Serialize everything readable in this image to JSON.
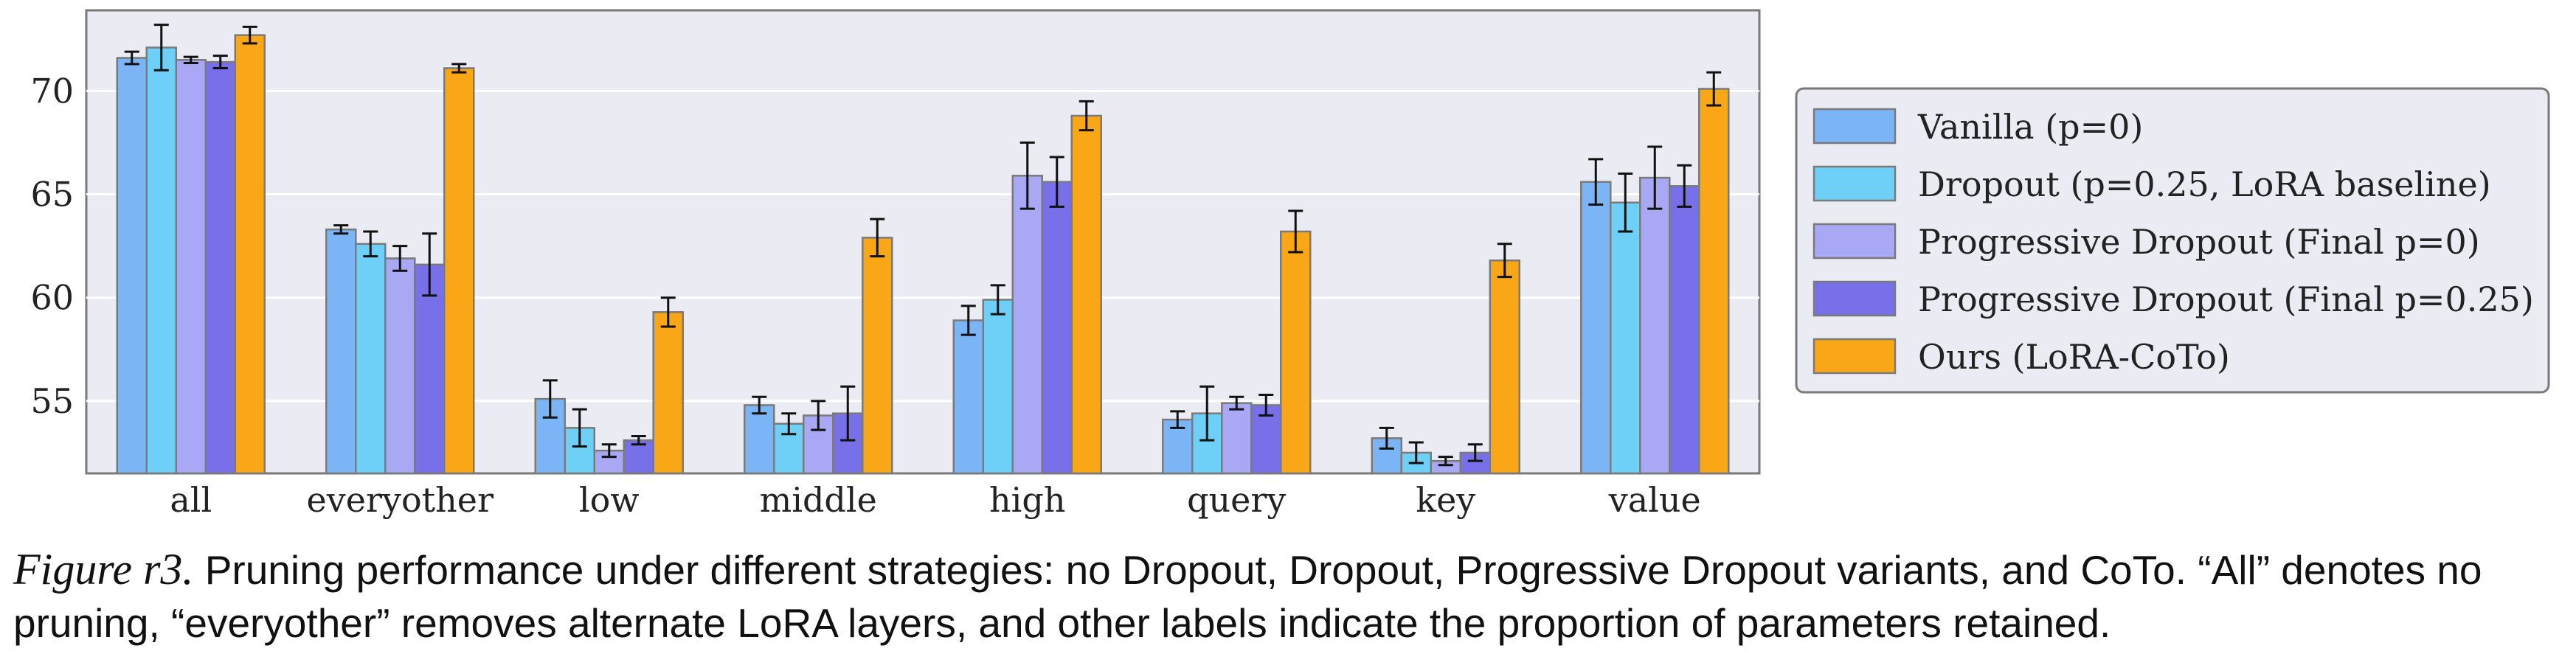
{
  "chart_data": {
    "type": "bar",
    "categories": [
      "all",
      "everyother",
      "low",
      "middle",
      "high",
      "query",
      "key",
      "value"
    ],
    "ylim": [
      51.5,
      73.9
    ],
    "yticks": [
      55,
      60,
      65,
      70
    ],
    "grid": true,
    "legend_position": "right",
    "series": [
      {
        "name": "Vanilla (p=0)",
        "color": "#7cb5f5",
        "values": [
          71.6,
          63.3,
          55.1,
          54.8,
          58.9,
          54.1,
          53.2,
          65.6
        ],
        "errors": [
          0.3,
          0.2,
          0.9,
          0.4,
          0.7,
          0.4,
          0.5,
          1.1
        ]
      },
      {
        "name": "Dropout (p=0.25, LoRA baseline)",
        "color": "#6fd0f7",
        "values": [
          72.1,
          62.6,
          53.7,
          53.9,
          59.9,
          54.4,
          52.5,
          64.6
        ],
        "errors": [
          1.1,
          0.6,
          0.9,
          0.5,
          0.7,
          1.3,
          0.5,
          1.4
        ]
      },
      {
        "name": "Progressive Dropout (Final p=0)",
        "color": "#a8a8f5",
        "values": [
          71.5,
          61.9,
          52.6,
          54.3,
          65.9,
          54.9,
          52.1,
          65.8
        ],
        "errors": [
          0.15,
          0.6,
          0.3,
          0.7,
          1.6,
          0.3,
          0.2,
          1.5
        ]
      },
      {
        "name": "Progressive Dropout (Final p=0.25)",
        "color": "#7870e8",
        "values": [
          71.4,
          61.6,
          53.1,
          54.4,
          65.6,
          54.8,
          52.5,
          65.4
        ],
        "errors": [
          0.3,
          1.5,
          0.2,
          1.3,
          1.2,
          0.5,
          0.4,
          1.0
        ]
      },
      {
        "name": "Ours (LoRA-CoTo)",
        "color": "#f9a617",
        "values": [
          72.7,
          71.1,
          59.3,
          62.9,
          68.8,
          63.2,
          61.8,
          70.1
        ],
        "errors": [
          0.4,
          0.2,
          0.7,
          0.9,
          0.7,
          1.0,
          0.8,
          0.8
        ]
      }
    ]
  },
  "caption": {
    "label": "Figure r3.",
    "text": " Pruning performance under different strategies: no Dropout, Dropout, Progressive Dropout variants, and CoTo. “All” denotes no pruning, “everyother” removes alternate LoRA layers, and other labels indicate the proportion of parameters retained."
  }
}
